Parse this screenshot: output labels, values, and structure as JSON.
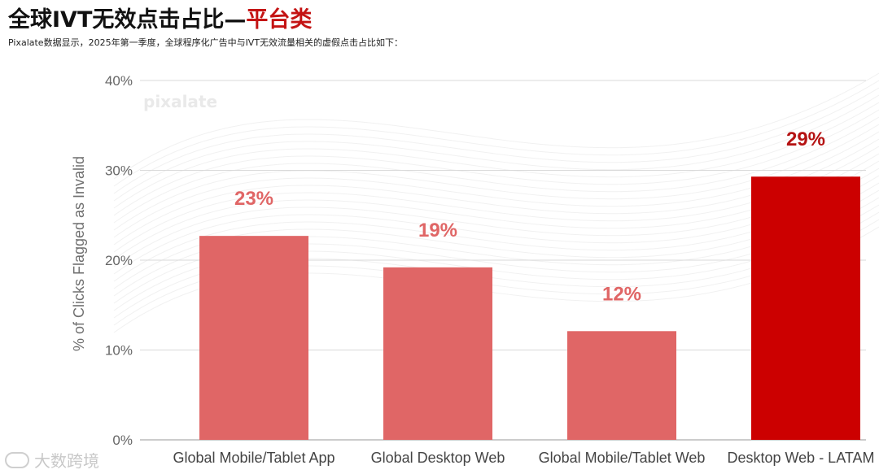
{
  "header": {
    "title_main": "全球IVT无效点击占比",
    "title_dash": "—",
    "title_accent": "平台类",
    "subtitle": "Pixalate数据显示，2025年第一季度，全球程序化广告中与IVT无效流量相关的虚假点击占比如下："
  },
  "chart_data": {
    "type": "bar",
    "title": "全球IVT无效点击占比—平台类",
    "xlabel": "",
    "ylabel": "% of Clicks Flagged as Invalid",
    "ylim": [
      0,
      40
    ],
    "yticks": [
      0,
      10,
      20,
      30,
      40
    ],
    "ytick_labels": [
      "0%",
      "10%",
      "20%",
      "30%",
      "40%"
    ],
    "grid": true,
    "categories": [
      "Global Mobile/Tablet App",
      "Global Desktop Web",
      "Global Mobile/Tablet Web",
      "Desktop Web - LATAM"
    ],
    "values": [
      22.7,
      19.2,
      12.1,
      29.3
    ],
    "data_labels": [
      "23%",
      "19%",
      "12%",
      "29%"
    ],
    "bar_colors": [
      "#e06666",
      "#e06666",
      "#e06666",
      "#cc0000"
    ],
    "label_colors": [
      "#e06666",
      "#e06666",
      "#e06666",
      "#b51212"
    ]
  },
  "watermarks": {
    "brand": "pixalate",
    "corner": "大数跨境"
  }
}
